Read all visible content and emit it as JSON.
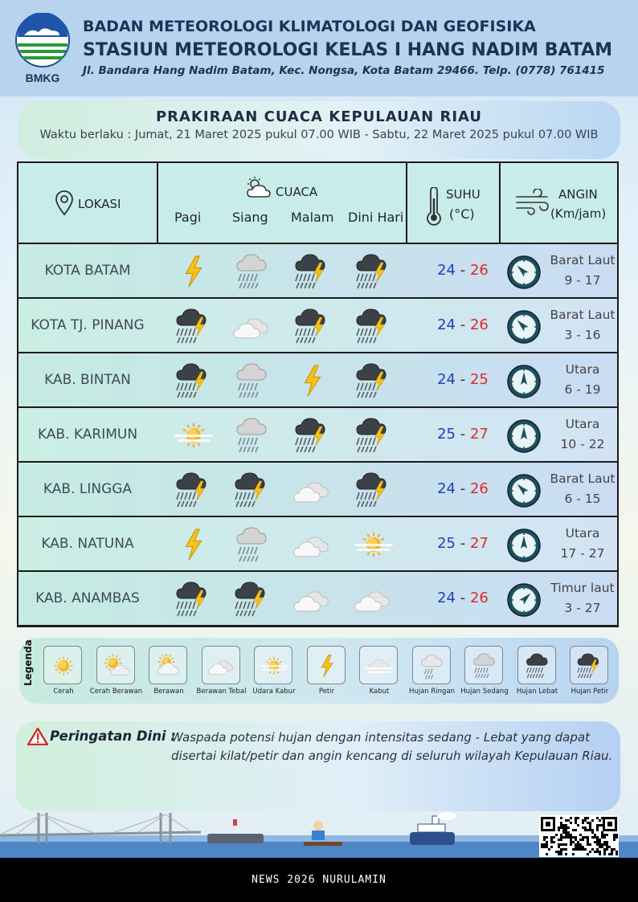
{
  "header": {
    "logo_text": "BMKG",
    "agency": "BADAN METEOROLOGI KLIMATOLOGI DAN GEOFISIKA",
    "station": "STASIUN METEOROLOGI KELAS I HANG NADIM BATAM",
    "address": "Jl. Bandara Hang Nadim Batam, Kec. Nongsa, Kota Batam 29466.  Telp. (0778) 761415"
  },
  "title": "PRAKIRAAN CUACA KEPULAUAN RIAU",
  "validity": "Waktu berlaku : Jumat, 21 Maret 2025 pukul 07.00 WIB - Sabtu, 22 Maret 2025 pukul 07.00 WIB",
  "table_header": {
    "location": "LOKASI",
    "weather": "CUACA",
    "periods": [
      "Pagi",
      "Siang",
      "Malam",
      "Dini Hari"
    ],
    "temp": "SUHU",
    "temp_unit": "(°C)",
    "wind": "ANGIN",
    "wind_unit": "(Km/jam)"
  },
  "rows": [
    {
      "location": "KOTA BATAM",
      "weather": [
        "petir",
        "hujan-sedang",
        "hujan-petir",
        "hujan-petir"
      ],
      "tmin": "24",
      "tmax": "26",
      "wind_dir": "Barat Laut",
      "wind_speed": "9 - 17",
      "wind_angle": 315
    },
    {
      "location": "KOTA TJ. PINANG",
      "weather": [
        "hujan-petir",
        "berawan-tebal",
        "hujan-petir",
        "hujan-petir"
      ],
      "tmin": "24",
      "tmax": "26",
      "wind_dir": "Barat Laut",
      "wind_speed": "3 - 16",
      "wind_angle": 315
    },
    {
      "location": "KAB. BINTAN",
      "weather": [
        "hujan-petir",
        "hujan-sedang",
        "petir",
        "hujan-petir"
      ],
      "tmin": "24",
      "tmax": "25",
      "wind_dir": "Utara",
      "wind_speed": "6 - 19",
      "wind_angle": 0
    },
    {
      "location": "KAB. KARIMUN",
      "weather": [
        "udara-kabur",
        "hujan-sedang",
        "hujan-petir",
        "hujan-petir"
      ],
      "tmin": "25",
      "tmax": "27",
      "wind_dir": "Utara",
      "wind_speed": "10 - 22",
      "wind_angle": 0
    },
    {
      "location": "KAB. LINGGA",
      "weather": [
        "hujan-petir",
        "hujan-petir",
        "berawan-tebal",
        "hujan-petir"
      ],
      "tmin": "24",
      "tmax": "26",
      "wind_dir": "Barat Laut",
      "wind_speed": "6 - 15",
      "wind_angle": 315
    },
    {
      "location": "KAB. NATUNA",
      "weather": [
        "petir",
        "hujan-sedang",
        "berawan-tebal",
        "udara-kabur"
      ],
      "tmin": "25",
      "tmax": "27",
      "wind_dir": "Utara",
      "wind_speed": "17 - 27",
      "wind_angle": 0
    },
    {
      "location": "KAB. ANAMBAS",
      "weather": [
        "hujan-petir",
        "hujan-petir",
        "berawan-tebal",
        "berawan-tebal"
      ],
      "tmin": "24",
      "tmax": "26",
      "wind_dir": "Timur laut",
      "wind_speed": "3 - 27",
      "wind_angle": 45
    }
  ],
  "legend": {
    "title": "Legenda",
    "items": [
      {
        "key": "cerah",
        "label": "Cerah"
      },
      {
        "key": "cerah-berawan",
        "label": "Cerah Berawan"
      },
      {
        "key": "berawan",
        "label": "Berawan"
      },
      {
        "key": "berawan-tebal",
        "label": "Berawan Tebal"
      },
      {
        "key": "udara-kabur",
        "label": "Udara Kabur"
      },
      {
        "key": "petir",
        "label": "Petir"
      },
      {
        "key": "kabut",
        "label": "Kabut"
      },
      {
        "key": "hujan-ringan",
        "label": "Hujan Ringan"
      },
      {
        "key": "hujan-sedang",
        "label": "Hujan Sedang"
      },
      {
        "key": "hujan-lebat",
        "label": "Hujan Lebat"
      },
      {
        "key": "hujan-petir",
        "label": "Hujan Petir"
      }
    ]
  },
  "warning": {
    "title": "Peringatan Dini :",
    "text": "Waspada potensi hujan dengan intensitas sedang - Lebat yang dapat disertai kilat/petir dan angin kencang di seluruh wilayah Kepulauan Riau."
  },
  "footer": "NEWS 2026 NURULAMIN",
  "colors": {
    "tmin": "#1e3fb8",
    "tmax": "#e02929",
    "header_bg": "#b7d3ee",
    "text_dark": "#1d3258"
  }
}
